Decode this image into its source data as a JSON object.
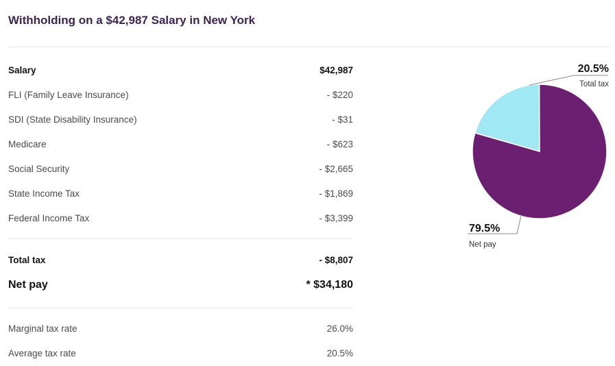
{
  "title": "Withholding on a $42,987 Salary in New York",
  "table": {
    "salary": {
      "label": "Salary",
      "value": "$42,987"
    },
    "deductions": [
      {
        "label": "FLI (Family Leave Insurance)",
        "value": "- $220"
      },
      {
        "label": "SDI (State Disability Insurance)",
        "value": "- $31"
      },
      {
        "label": "Medicare",
        "value": "- $623"
      },
      {
        "label": "Social Security",
        "value": "- $2,665"
      },
      {
        "label": "State Income Tax",
        "value": "- $1,869"
      },
      {
        "label": "Federal Income Tax",
        "value": "- $3,399"
      }
    ],
    "total_tax": {
      "label": "Total tax",
      "value": "- $8,807"
    },
    "net_pay": {
      "label": "Net pay",
      "value": "* $34,180"
    },
    "rates": [
      {
        "label": "Marginal tax rate",
        "value": "26.0%"
      },
      {
        "label": "Average tax rate",
        "value": "20.5%"
      }
    ]
  },
  "chart_data": {
    "type": "pie",
    "slices": [
      {
        "name": "Total tax",
        "value": 20.5,
        "label": "20.5%",
        "color": "#a0e8f3"
      },
      {
        "name": "Net pay",
        "value": 79.5,
        "label": "79.5%",
        "color": "#6b1f71"
      }
    ]
  }
}
